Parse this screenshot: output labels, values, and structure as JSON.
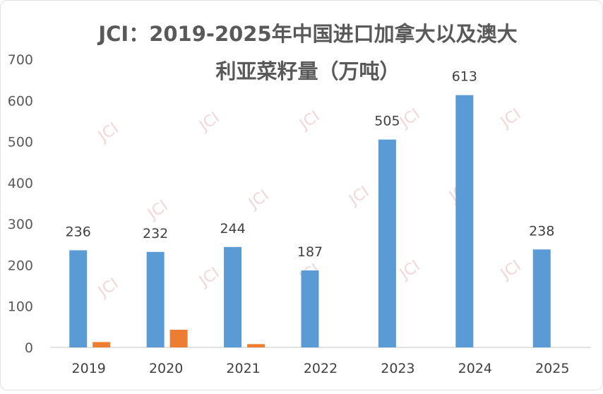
{
  "chart_data": {
    "type": "bar",
    "title_lines": [
      "JCI：2019-2025年中国进口加拿大以及澳大",
      "利亚菜籽量（万吨）"
    ],
    "categories": [
      "2019",
      "2020",
      "2021",
      "2022",
      "2023",
      "2024",
      "2025"
    ],
    "series": [
      {
        "values": [
          236,
          232,
          244,
          187,
          505,
          613,
          238
        ],
        "labels": [
          "236",
          "232",
          "244",
          "187",
          "505",
          "613",
          "238"
        ],
        "color": "#5b9bd5"
      },
      {
        "values": [
          13,
          43,
          8,
          0,
          0,
          0,
          0
        ],
        "color": "#ed7d31"
      }
    ],
    "yticks": [
      "0",
      "100",
      "200",
      "300",
      "400",
      "500",
      "600",
      "700"
    ],
    "ylim": [
      0,
      700
    ],
    "grid": false,
    "watermark": "JCI"
  }
}
